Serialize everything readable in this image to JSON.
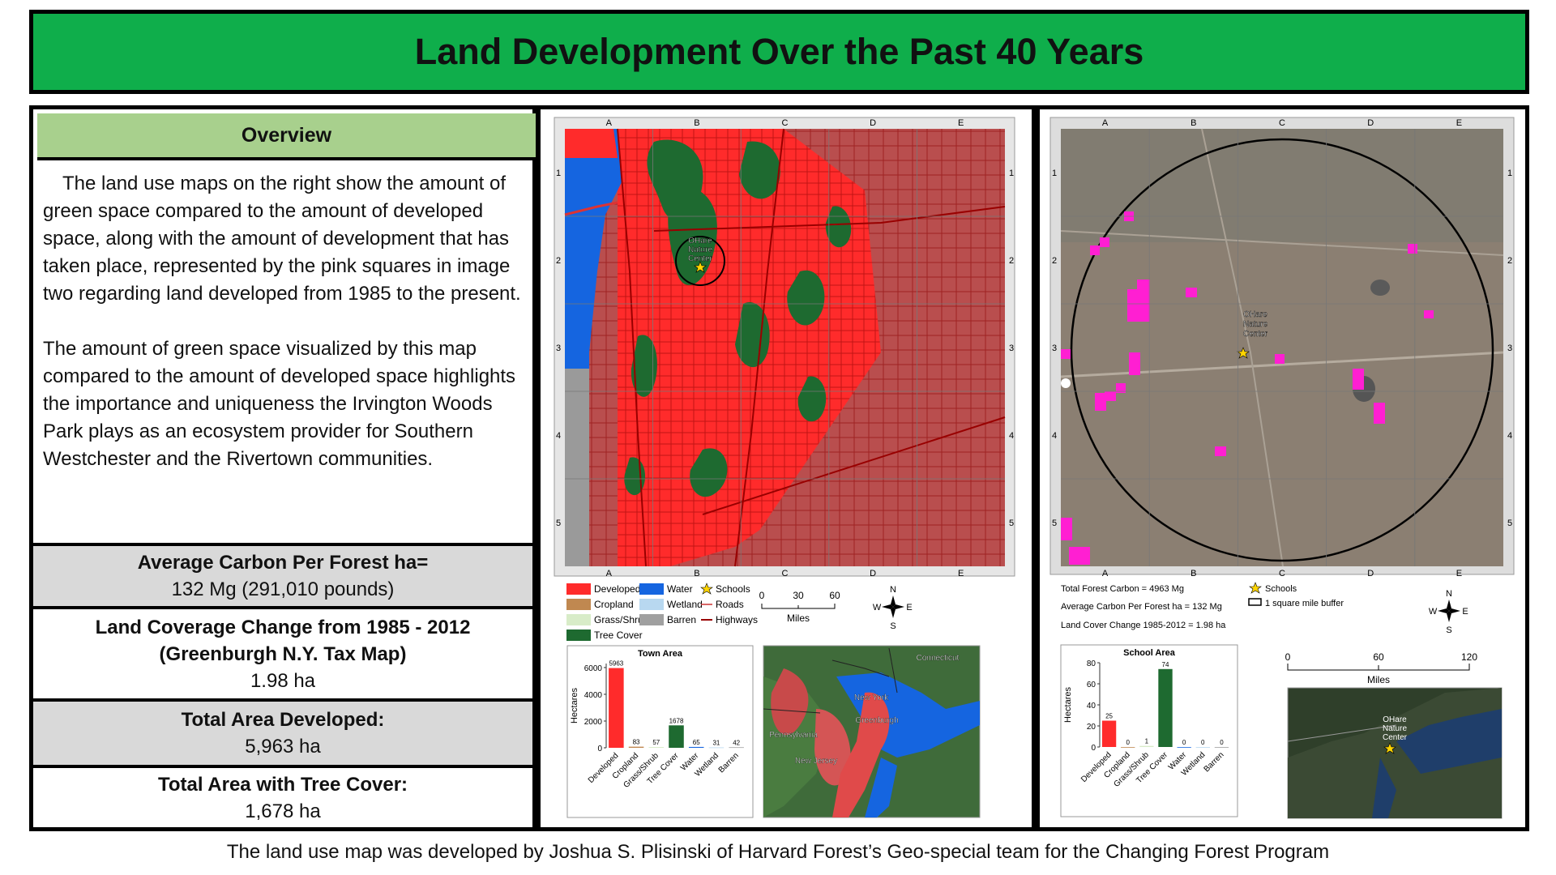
{
  "title": "Land Development Over the Past 40 Years",
  "overview": {
    "heading": "Overview",
    "paragraph1": "The land use maps on the right show the amount of green space compared to the amount of developed space, along with the amount of development that has taken place, represented by the pink squares in image two regarding land developed from 1985 to the present.",
    "paragraph2": "The amount of green space visualized by this map compared to the amount of developed space highlights the importance and uniqueness the Irvington Woods Park plays as an ecosystem provider for Southern Westchester and the Rivertown communities."
  },
  "stats": [
    {
      "label": "Average Carbon Per Forest ha=",
      "value": "132 Mg (291,010 pounds)"
    },
    {
      "label": "Land Coverage Change from 1985 - 2012",
      "label2": "(Greenburgh N.Y. Tax Map)",
      "value": "1.98 ha"
    },
    {
      "label": "Total Area Developed:",
      "value": "5,963 ha"
    },
    {
      "label": "Total Area with Tree Cover:",
      "value": "1,678 ha"
    }
  ],
  "grid": {
    "cols": [
      "A",
      "B",
      "C",
      "D",
      "E"
    ],
    "rows": [
      "1",
      "2",
      "3",
      "4",
      "5"
    ]
  },
  "map1": {
    "place_label": [
      "OHare",
      "Nature",
      "Center"
    ],
    "legend": [
      {
        "label": "Developed",
        "color": "#ff2b2b"
      },
      {
        "label": "Water",
        "color": "#1565e0"
      },
      {
        "label": "Schools",
        "icon": "star-icon"
      },
      {
        "label": "Cropland",
        "color": "#c08850"
      },
      {
        "label": "Wetland",
        "color": "#b8d8f0"
      },
      {
        "label": "Roads",
        "line": "#c33"
      },
      {
        "label": "Grass/Shrub",
        "color": "#d8ecc8"
      },
      {
        "label": "Barren",
        "color": "#a0a0a0"
      },
      {
        "label": "Highways",
        "line": "#900"
      },
      {
        "label": "Tree Cover",
        "color": "#1e6a30"
      }
    ],
    "scale": {
      "ticks": [
        "0",
        "30",
        "60"
      ],
      "unit": "Miles"
    },
    "compass": {
      "n": "N",
      "s": "S",
      "e": "E",
      "w": "W"
    }
  },
  "chart1": {
    "chart_data": {
      "type": "bar",
      "title": "Town Area",
      "ylabel": "Hectares",
      "categories": [
        "Developed",
        "Cropland",
        "Grass/Shrub",
        "Tree Cover",
        "Water",
        "Wetland",
        "Barren"
      ],
      "values": [
        5963,
        83,
        57,
        1678,
        65,
        31,
        42
      ],
      "colors": [
        "#ff2b2b",
        "#c08850",
        "#d8ecc8",
        "#1e6a30",
        "#1565e0",
        "#b8d8f0",
        "#a0a0a0"
      ],
      "yticks": [
        "0",
        "2000",
        "4000",
        "6000"
      ],
      "ylim": [
        0,
        6300
      ]
    }
  },
  "inset1": {
    "labels": [
      "Connecticut",
      "New York",
      "Greenburgh",
      "Pennsylvania",
      "New Jersey"
    ]
  },
  "map2": {
    "place_label": [
      "OHare",
      "Nature",
      "Center"
    ],
    "info": [
      "Total Forest Carbon = 4963 Mg",
      "Average Carbon Per Forest ha = 132 Mg",
      "Land Cover Change 1985-2012 = 1.98 ha"
    ],
    "legend": [
      {
        "label": "Schools",
        "icon": "star-icon"
      },
      {
        "label": "1 square mile buffer",
        "icon": "rectangle-icon"
      }
    ],
    "scale": {
      "ticks": [
        "0",
        "60",
        "120"
      ],
      "unit": "Miles"
    },
    "compass": {
      "n": "N",
      "s": "S",
      "e": "E",
      "w": "W"
    }
  },
  "chart2": {
    "chart_data": {
      "type": "bar",
      "title": "School Area",
      "ylabel": "Hectares",
      "categories": [
        "Developed",
        "Cropland",
        "Grass/Shrub",
        "Tree Cover",
        "Water",
        "Wetland",
        "Barren"
      ],
      "values": [
        25,
        0,
        1,
        74,
        0,
        0,
        0
      ],
      "colors": [
        "#ff2b2b",
        "#c08850",
        "#d8ecc8",
        "#1e6a30",
        "#1565e0",
        "#b8d8f0",
        "#a0a0a0"
      ],
      "yticks": [
        "0",
        "20",
        "40",
        "60",
        "80"
      ],
      "ylim": [
        0,
        80
      ]
    }
  },
  "inset2": {
    "labels": [
      "OHare",
      "Nature",
      "Center"
    ]
  },
  "footer": "The land use map was developed by Joshua S. Plisinski of Harvard Forest’s Geo-special team for the Changing Forest Program"
}
